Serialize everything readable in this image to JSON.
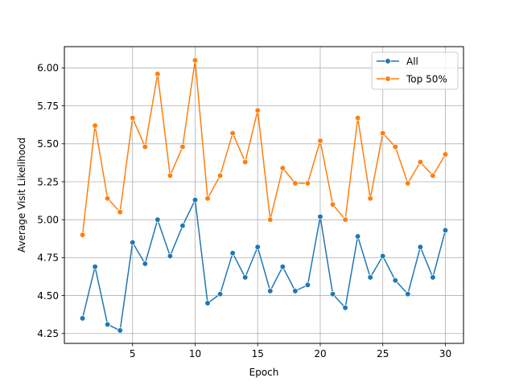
{
  "chart_data": {
    "type": "line",
    "title": "",
    "xlabel": "Epoch",
    "ylabel": "Average Visit Likelihood",
    "xlim": [
      -0.45,
      31.45
    ],
    "ylim": [
      4.185,
      6.14
    ],
    "xticks": [
      5,
      10,
      15,
      20,
      25,
      30
    ],
    "yticks": [
      4.25,
      4.5,
      4.75,
      5.0,
      5.25,
      5.5,
      5.75,
      6.0
    ],
    "ytick_labels": [
      "4.25",
      "4.50",
      "4.75",
      "5.00",
      "5.25",
      "5.50",
      "5.75",
      "6.00"
    ],
    "grid": true,
    "legend_position": "top-right",
    "x": [
      1,
      2,
      3,
      4,
      5,
      6,
      7,
      8,
      9,
      10,
      11,
      12,
      13,
      14,
      15,
      16,
      17,
      18,
      19,
      20,
      21,
      22,
      23,
      24,
      25,
      26,
      27,
      28,
      29,
      30
    ],
    "series": [
      {
        "name": "All",
        "color": "#1f77b4",
        "values": [
          4.35,
          4.69,
          4.31,
          4.27,
          4.85,
          4.71,
          5.0,
          4.76,
          4.96,
          5.13,
          4.45,
          4.51,
          4.78,
          4.62,
          4.82,
          4.53,
          4.69,
          4.53,
          4.57,
          5.02,
          4.51,
          4.42,
          4.89,
          4.62,
          4.76,
          4.6,
          4.51,
          4.82,
          4.62,
          4.93
        ]
      },
      {
        "name": "Top 50%",
        "color": "#ff7f0e",
        "values": [
          4.9,
          5.62,
          5.14,
          5.05,
          5.67,
          5.48,
          5.96,
          5.29,
          5.48,
          6.05,
          5.14,
          5.29,
          5.57,
          5.38,
          5.72,
          5.0,
          5.34,
          5.24,
          5.24,
          5.52,
          5.1,
          5.0,
          5.67,
          5.14,
          5.57,
          5.48,
          5.24,
          5.38,
          5.29,
          5.43
        ]
      }
    ]
  }
}
